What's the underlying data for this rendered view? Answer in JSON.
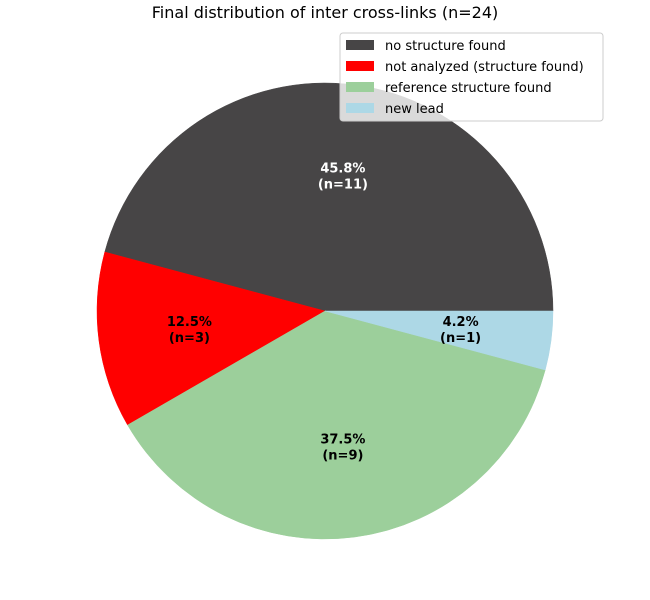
{
  "chart_data": {
    "type": "pie",
    "title": "Final distribution of inter cross-links (n=24)",
    "slices": [
      {
        "label": "no structure found",
        "value": 11,
        "percent_label": "45.8%",
        "count_label": "(n=11)",
        "color": "#474546",
        "text_color": "#ffffff"
      },
      {
        "label": "not analyzed (structure found)",
        "value": 3,
        "percent_label": "12.5%",
        "count_label": "(n=3)",
        "color": "#ff0000",
        "text_color": "#000000"
      },
      {
        "label": "reference structure found",
        "value": 9,
        "percent_label": "37.5%",
        "count_label": "(n=9)",
        "color": "#9ccf9b",
        "text_color": "#000000"
      },
      {
        "label": "new lead",
        "value": 1,
        "percent_label": "4.2%",
        "count_label": "(n=1)",
        "color": "#add8e6",
        "text_color": "#000000"
      }
    ],
    "start_angle_deg": 0,
    "direction": "counterclockwise",
    "legend_position": "upper-right"
  }
}
